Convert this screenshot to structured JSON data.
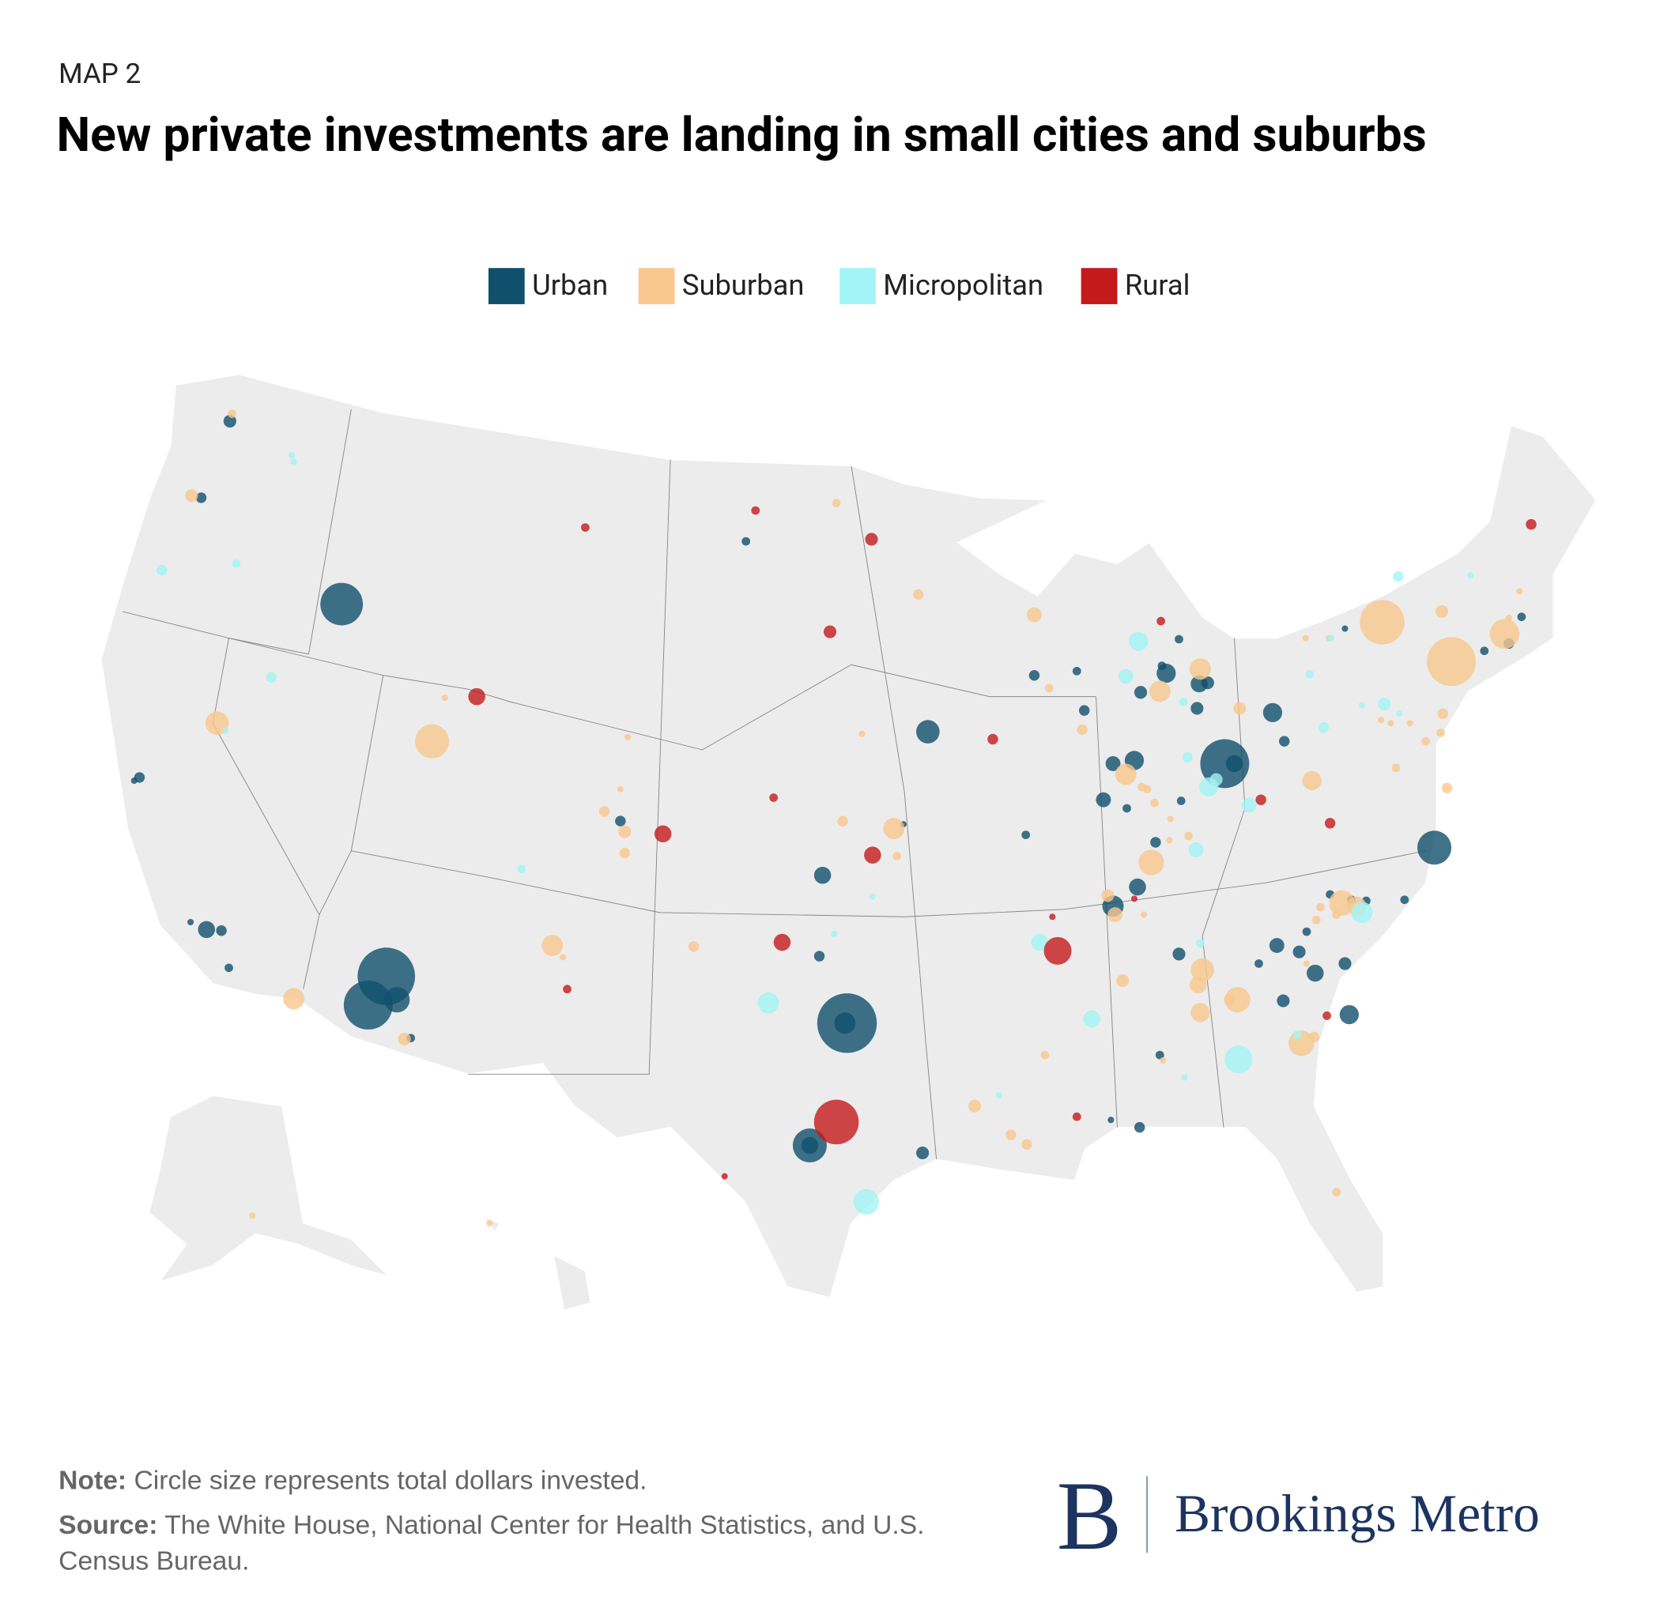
{
  "header": {
    "kicker": "MAP 2",
    "title": "New private investments are landing in small cities and suburbs"
  },
  "legend": [
    {
      "name": "Urban",
      "color": "#10506d"
    },
    {
      "name": "Suburban",
      "color": "#f9c88f"
    },
    {
      "name": "Micropolitan",
      "color": "#a3f4f4"
    },
    {
      "name": "Rural",
      "color": "#c41a1c"
    }
  ],
  "footer": {
    "note_label": "Note:",
    "note": "Circle size represents total dollars invested.",
    "source_label": "Source:",
    "source": "The White House, National Center for Health Statistics, and U.S. Census Bureau.",
    "logo_mark": "B",
    "logo_text": "Brookings Metro"
  }
}
